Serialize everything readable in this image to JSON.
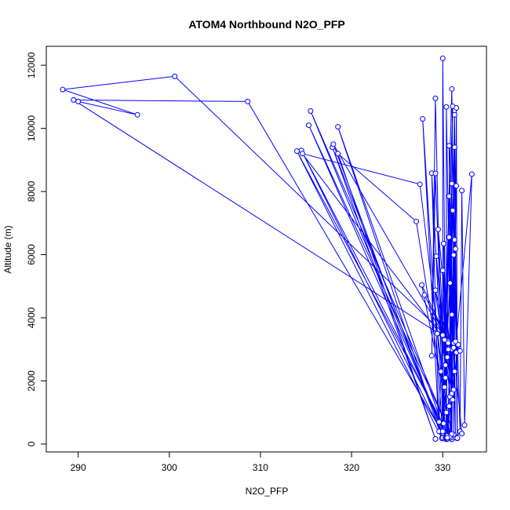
{
  "chart_data": {
    "type": "scatter",
    "title": "ATOM4 Northbound N2O_PFP",
    "xlabel": "N2O_PFP",
    "ylabel": "Altitude (m)",
    "xlim": [
      286.5,
      334.8
    ],
    "ylim": [
      -250,
      12600
    ],
    "x_ticks": [
      290,
      300,
      310,
      320,
      330
    ],
    "y_ticks": [
      0,
      2000,
      4000,
      6000,
      8000,
      10000,
      12000
    ],
    "series_color": "#0000ff",
    "series": [
      {
        "name": "",
        "points": [
          [
            290.0,
            10850
          ],
          [
            296.5,
            10430
          ],
          [
            288.3,
            11230
          ],
          [
            300.6,
            11650
          ],
          [
            331.2,
            3200
          ],
          [
            289.5,
            10900
          ],
          [
            308.6,
            10850
          ],
          [
            330.4,
            150
          ],
          [
            315.5,
            10550
          ],
          [
            330.9,
            300
          ],
          [
            315.3,
            10100
          ],
          [
            330.5,
            160
          ],
          [
            318.5,
            10050
          ],
          [
            329.9,
            180
          ],
          [
            314.0,
            9280
          ],
          [
            330.7,
            250
          ],
          [
            314.5,
            9300
          ],
          [
            330.2,
            170
          ],
          [
            317.9,
            9400
          ],
          [
            329.2,
            160
          ],
          [
            318.5,
            9200
          ],
          [
            327.1,
            7050
          ],
          [
            330.8,
            210
          ],
          [
            327.5,
            8230
          ],
          [
            314.6,
            9200
          ],
          [
            331.0,
            3000
          ],
          [
            318.0,
            9500
          ],
          [
            330.0,
            200
          ],
          [
            327.8,
            10300
          ],
          [
            329.6,
            400
          ],
          [
            328.8,
            8580
          ],
          [
            330.3,
            200
          ],
          [
            329.2,
            8570
          ],
          [
            328.8,
            2800
          ],
          [
            329.2,
            10950
          ],
          [
            330.0,
            350
          ],
          [
            330.0,
            12220
          ],
          [
            330.4,
            200
          ],
          [
            330.4,
            10680
          ],
          [
            331.0,
            150
          ],
          [
            330.7,
            9450
          ],
          [
            331.4,
            200
          ],
          [
            331.0,
            11250
          ],
          [
            330.0,
            400
          ],
          [
            331.1,
            10700
          ],
          [
            330.6,
            250
          ],
          [
            331.3,
            10430
          ],
          [
            331.6,
            180
          ],
          [
            331.5,
            10650
          ],
          [
            331.2,
            300
          ],
          [
            331.3,
            9400
          ],
          [
            330.9,
            200
          ],
          [
            331.5,
            8180
          ],
          [
            330.5,
            260
          ],
          [
            333.2,
            8550
          ],
          [
            332.4,
            600
          ],
          [
            332.1,
            8030
          ],
          [
            331.9,
            400
          ],
          [
            331.3,
            6470
          ],
          [
            331.6,
            190
          ],
          [
            331.4,
            6180
          ],
          [
            330.8,
            240
          ],
          [
            331.2,
            5990
          ],
          [
            331.0,
            320
          ],
          [
            327.7,
            5040
          ],
          [
            330.6,
            3250
          ],
          [
            328.0,
            4720
          ],
          [
            330.6,
            3200
          ],
          [
            329.2,
            4870
          ],
          [
            330.3,
            2500
          ],
          [
            329.3,
            5950
          ],
          [
            330.8,
            1500
          ],
          [
            330.1,
            6350
          ],
          [
            330.3,
            2100
          ],
          [
            329.5,
            6800
          ],
          [
            331.2,
            1720
          ],
          [
            330.0,
            5500
          ],
          [
            330.4,
            1000
          ],
          [
            330.7,
            7850
          ],
          [
            331.3,
            2300
          ],
          [
            330.7,
            6550
          ],
          [
            331.0,
            1600
          ],
          [
            331.0,
            8250
          ],
          [
            330.7,
            1200
          ],
          [
            331.1,
            7400
          ],
          [
            331.5,
            2900
          ],
          [
            331.7,
            3150
          ],
          [
            331.9,
            2950
          ],
          [
            331.4,
            3250
          ],
          [
            331.1,
            1400
          ],
          [
            330.2,
            3300
          ],
          [
            330.5,
            200
          ],
          [
            332.1,
            330
          ],
          [
            331.2,
            3050
          ],
          [
            329.4,
            3500
          ],
          [
            329.8,
            2300
          ],
          [
            329.6,
            700
          ],
          [
            330.1,
            650
          ],
          [
            330.0,
            3450
          ],
          [
            330.5,
            2750
          ],
          [
            330.6,
            3000
          ],
          [
            330.2,
            1800
          ],
          [
            330.8,
            5100
          ],
          [
            331.0,
            4100
          ]
        ]
      }
    ]
  }
}
